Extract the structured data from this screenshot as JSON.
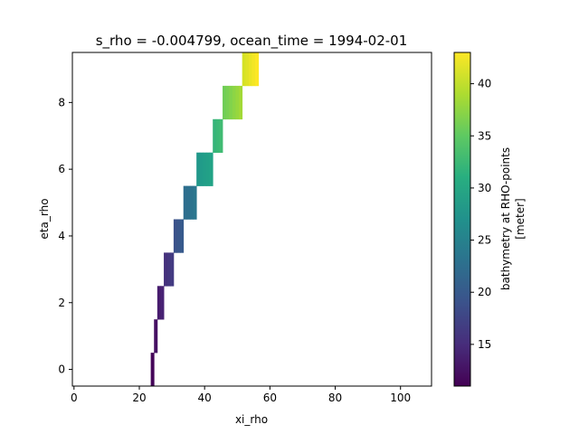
{
  "chart_data": {
    "type": "heatmap",
    "title": "s_rho = -0.004799, ocean_time = 1994-02-01",
    "xlabel": "xi_rho",
    "ylabel": "eta_rho",
    "xlim": [
      -0.5,
      109.5
    ],
    "ylim": [
      -0.5,
      9.5
    ],
    "x_ticks": [
      0,
      20,
      40,
      60,
      80,
      100
    ],
    "y_ticks": [
      0,
      2,
      4,
      6,
      8
    ],
    "colorbar": {
      "label_line1": "bathymetry at RHO-points",
      "label_line2": "[meter]",
      "range": [
        11,
        43
      ],
      "ticks": [
        15,
        20,
        25,
        30,
        35,
        40
      ],
      "colormap": "viridis"
    },
    "cells": [
      {
        "row": 0,
        "x_from": 23.5,
        "x_to": 24.5,
        "v_from": 11.5,
        "v_to": 11.5
      },
      {
        "row": 1,
        "x_from": 24.5,
        "x_to": 25.5,
        "v_from": 12.5,
        "v_to": 12.5
      },
      {
        "row": 2,
        "x_from": 25.5,
        "x_to": 27.5,
        "v_from": 13.5,
        "v_to": 14
      },
      {
        "row": 3,
        "x_from": 27.5,
        "x_to": 30.5,
        "v_from": 15.5,
        "v_to": 16.5
      },
      {
        "row": 4,
        "x_from": 30.5,
        "x_to": 33.5,
        "v_from": 19,
        "v_to": 20
      },
      {
        "row": 5,
        "x_from": 33.5,
        "x_to": 37.5,
        "v_from": 22.5,
        "v_to": 23.5
      },
      {
        "row": 6,
        "x_from": 37.5,
        "x_to": 42.5,
        "v_from": 28,
        "v_to": 29.5
      },
      {
        "row": 7,
        "x_from": 42.5,
        "x_to": 45.5,
        "v_from": 32,
        "v_to": 33
      },
      {
        "row": 8,
        "x_from": 45.5,
        "x_to": 51.5,
        "v_from": 36,
        "v_to": 38.5
      },
      {
        "row": 9,
        "x_from": 51.5,
        "x_to": 56.5,
        "v_from": 41,
        "v_to": 43
      }
    ]
  }
}
